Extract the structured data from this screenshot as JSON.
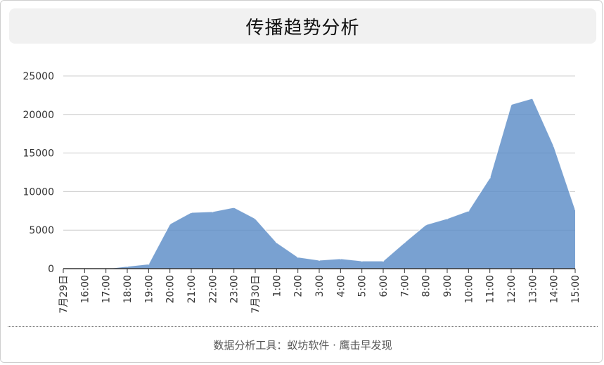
{
  "title": "传播趋势分析",
  "footer": "数据分析工具：蚁坊软件 · 鹰击早发现",
  "colors": {
    "area_fill": "#5b8cc7",
    "area_stroke": "#ffffff",
    "grid": "#cccccc",
    "axis": "#333333",
    "text": "#333333"
  },
  "chart_data": {
    "type": "area",
    "title": "传播趋势分析",
    "xlabel": "",
    "ylabel": "",
    "ylim": [
      0,
      25000
    ],
    "yticks": [
      0,
      5000,
      10000,
      15000,
      20000,
      25000
    ],
    "grid": true,
    "categories": [
      "7月29日",
      "16:00",
      "17:00",
      "18:00",
      "19:00",
      "20:00",
      "21:00",
      "22:00",
      "23:00",
      "7月30日",
      "1:00",
      "2:00",
      "3:00",
      "4:00",
      "5:00",
      "6:00",
      "7:00",
      "8:00",
      "9:00",
      "10:00",
      "11:00",
      "12:00",
      "13:00",
      "14:00",
      "15:00"
    ],
    "values": [
      0,
      0,
      0,
      300,
      600,
      5800,
      7300,
      7400,
      7950,
      6500,
      3400,
      1500,
      1100,
      1300,
      1000,
      1000,
      3400,
      5700,
      6500,
      7500,
      11800,
      21300,
      22100,
      15900,
      7700
    ]
  }
}
